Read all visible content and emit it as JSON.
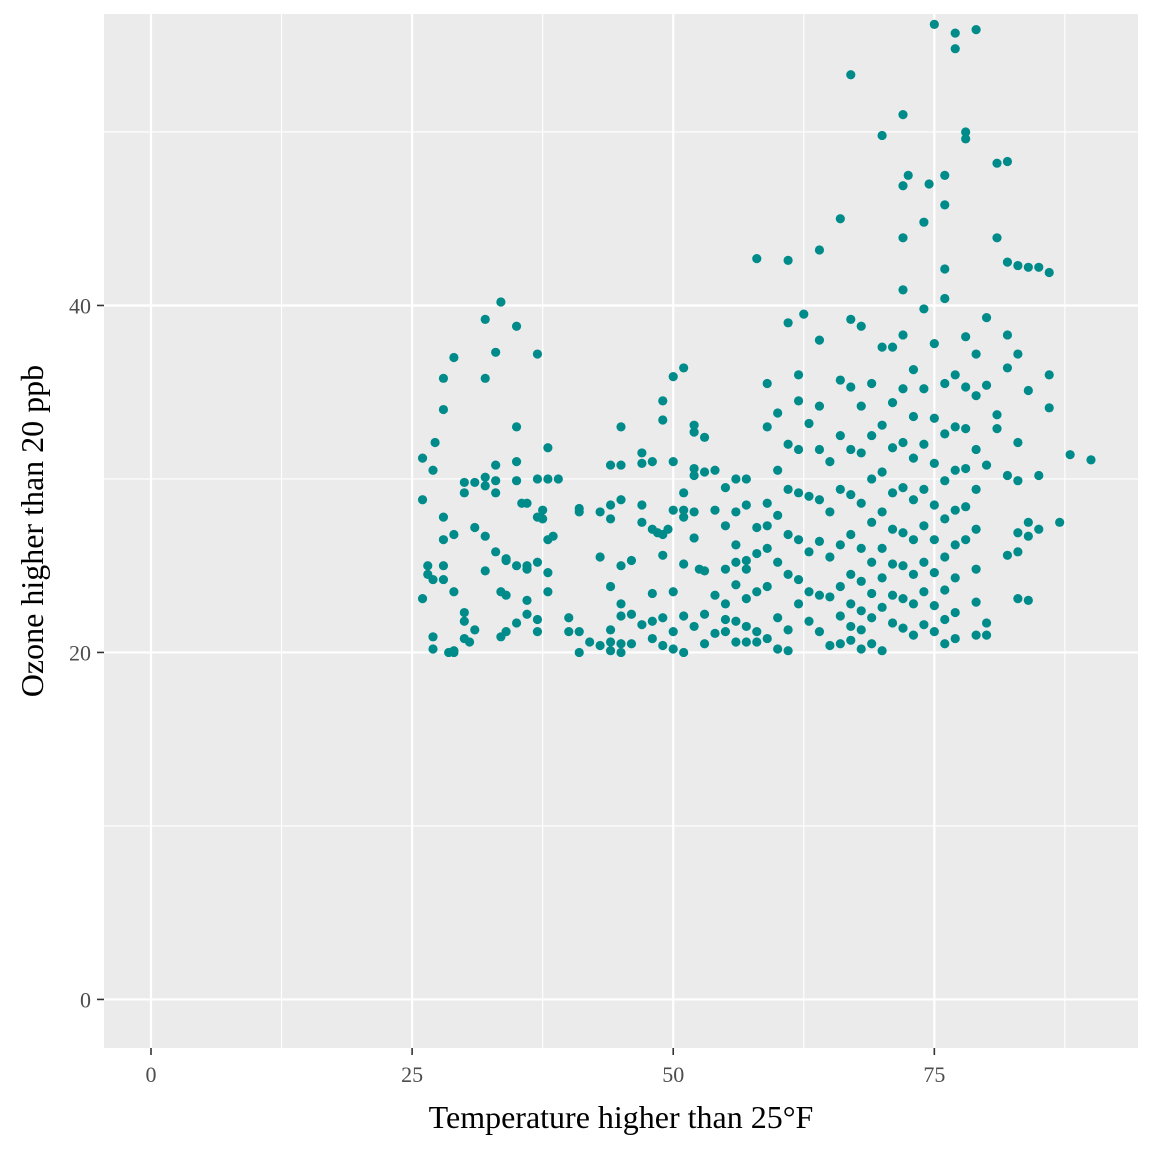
{
  "chart_data": {
    "type": "scatter",
    "title": "",
    "xlabel": "Temperature higher than 25°F",
    "ylabel": "Ozone higher than 20 ppb",
    "xlim": [
      -4.5,
      94.5
    ],
    "ylim": [
      -2.8,
      56.8
    ],
    "x_ticks": [
      0,
      25,
      50,
      75
    ],
    "x_tick_labels": [
      "0",
      "25",
      "50",
      "75"
    ],
    "y_ticks": [
      0,
      20,
      40
    ],
    "y_tick_labels": [
      "0",
      "20",
      "40"
    ],
    "grid": true,
    "legend": "none",
    "colors": {
      "point": "#008b8b",
      "panel": "#ebebeb",
      "grid": "#ffffff"
    },
    "points": [
      [
        26,
        31.2
      ],
      [
        26,
        28.8
      ],
      [
        26,
        23.1
      ],
      [
        26.5,
        25
      ],
      [
        26.5,
        24.5
      ],
      [
        27,
        24.2
      ],
      [
        27,
        30.5
      ],
      [
        27.2,
        32.1
      ],
      [
        27,
        20.9
      ],
      [
        27,
        20.2
      ],
      [
        28,
        35.8
      ],
      [
        28,
        34
      ],
      [
        28,
        27.8
      ],
      [
        28,
        26.5
      ],
      [
        28,
        25
      ],
      [
        28,
        24.2
      ],
      [
        28.5,
        20
      ],
      [
        29,
        20
      ],
      [
        29,
        26.8
      ],
      [
        29,
        23.5
      ],
      [
        29,
        20.1
      ],
      [
        29,
        37
      ],
      [
        30,
        29.8
      ],
      [
        30,
        29.2
      ],
      [
        30,
        22.3
      ],
      [
        30,
        21.8
      ],
      [
        30,
        20.8
      ],
      [
        30.5,
        20.6
      ],
      [
        31,
        29.8
      ],
      [
        31,
        27.2
      ],
      [
        31,
        21.3
      ],
      [
        32,
        39.2
      ],
      [
        32,
        35.8
      ],
      [
        32,
        30.1
      ],
      [
        32,
        29.6
      ],
      [
        32,
        26.7
      ],
      [
        32,
        24.7
      ],
      [
        33,
        37.3
      ],
      [
        33,
        30.8
      ],
      [
        33,
        29.9
      ],
      [
        33,
        29.2
      ],
      [
        33,
        25.8
      ],
      [
        33.5,
        40.2
      ],
      [
        33.5,
        23.5
      ],
      [
        33.5,
        20.9
      ],
      [
        34,
        25.4
      ],
      [
        34,
        23.3
      ],
      [
        34,
        21.2
      ],
      [
        34,
        25.3
      ],
      [
        35,
        38.8
      ],
      [
        35,
        33
      ],
      [
        35,
        31
      ],
      [
        35,
        29.9
      ],
      [
        35,
        25
      ],
      [
        35,
        21.7
      ],
      [
        35.5,
        28.6
      ],
      [
        36,
        28.6
      ],
      [
        36,
        25
      ],
      [
        36,
        24.8
      ],
      [
        36,
        23
      ],
      [
        36,
        22.2
      ],
      [
        37,
        37.2
      ],
      [
        37,
        30
      ],
      [
        37,
        27.8
      ],
      [
        37,
        25.2
      ],
      [
        37,
        21.9
      ],
      [
        37,
        21.2
      ],
      [
        37.5,
        28.2
      ],
      [
        37.5,
        27.7
      ],
      [
        38,
        31.8
      ],
      [
        38,
        30
      ],
      [
        38,
        26.5
      ],
      [
        38,
        24.6
      ],
      [
        38,
        23.5
      ],
      [
        38.5,
        26.7
      ],
      [
        39,
        30
      ],
      [
        40,
        22
      ],
      [
        40,
        21.2
      ],
      [
        41,
        28.3
      ],
      [
        41,
        28.1
      ],
      [
        41,
        21.2
      ],
      [
        41,
        20
      ],
      [
        42,
        20.6
      ],
      [
        43,
        28.1
      ],
      [
        43,
        25.5
      ],
      [
        43,
        20.4
      ],
      [
        44,
        30.8
      ],
      [
        44,
        28.5
      ],
      [
        44,
        27.7
      ],
      [
        44,
        23.8
      ],
      [
        44,
        21.3
      ],
      [
        44,
        20.6
      ],
      [
        44,
        20.1
      ],
      [
        45,
        33
      ],
      [
        45,
        30.8
      ],
      [
        45,
        28.8
      ],
      [
        45,
        25
      ],
      [
        45,
        22.8
      ],
      [
        45,
        22.1
      ],
      [
        45,
        20.5
      ],
      [
        45,
        20
      ],
      [
        46,
        25.3
      ],
      [
        46,
        22.2
      ],
      [
        46,
        20.5
      ],
      [
        47,
        31.5
      ],
      [
        47,
        30.9
      ],
      [
        47,
        28.5
      ],
      [
        47,
        27.5
      ],
      [
        47,
        21.6
      ],
      [
        48,
        31
      ],
      [
        48,
        27.1
      ],
      [
        48,
        23.4
      ],
      [
        48,
        21.8
      ],
      [
        48,
        20.8
      ],
      [
        48.5,
        26.9
      ],
      [
        49,
        34.5
      ],
      [
        49,
        33.4
      ],
      [
        49,
        26.8
      ],
      [
        49,
        25.6
      ],
      [
        49,
        22
      ],
      [
        49,
        20.4
      ],
      [
        49.5,
        27.1
      ],
      [
        50,
        35.9
      ],
      [
        50,
        31
      ],
      [
        50,
        28.2
      ],
      [
        50,
        23.5
      ],
      [
        50,
        21.2
      ],
      [
        50,
        20.2
      ],
      [
        51,
        36.4
      ],
      [
        51,
        29.2
      ],
      [
        51,
        28.2
      ],
      [
        51,
        27.8
      ],
      [
        51,
        22.1
      ],
      [
        51,
        20
      ],
      [
        51,
        25.1
      ],
      [
        52,
        33.1
      ],
      [
        52,
        32.7
      ],
      [
        52,
        30.6
      ],
      [
        52,
        30.2
      ],
      [
        52,
        28.1
      ],
      [
        52,
        26.6
      ],
      [
        52,
        21.5
      ],
      [
        52.5,
        24.8
      ],
      [
        53,
        32.4
      ],
      [
        53,
        30.4
      ],
      [
        53,
        24.7
      ],
      [
        53,
        22.2
      ],
      [
        53,
        20.5
      ],
      [
        54,
        30.5
      ],
      [
        54,
        28.2
      ],
      [
        54,
        23.3
      ],
      [
        54,
        21.1
      ],
      [
        55,
        29.5
      ],
      [
        55,
        27.3
      ],
      [
        55,
        24.8
      ],
      [
        55,
        22.8
      ],
      [
        55,
        21.9
      ],
      [
        55,
        21.2
      ],
      [
        56,
        30
      ],
      [
        56,
        28.1
      ],
      [
        56,
        26.2
      ],
      [
        56,
        25.2
      ],
      [
        56,
        23.9
      ],
      [
        56,
        21.8
      ],
      [
        56,
        20.6
      ],
      [
        57,
        30
      ],
      [
        57,
        28.5
      ],
      [
        57,
        25.3
      ],
      [
        57,
        24.8
      ],
      [
        57,
        23.1
      ],
      [
        57,
        21.5
      ],
      [
        57,
        20.6
      ],
      [
        58,
        42.7
      ],
      [
        58,
        27.2
      ],
      [
        58,
        25.7
      ],
      [
        58,
        23.5
      ],
      [
        58,
        21.2
      ],
      [
        58,
        20.6
      ],
      [
        59,
        35.5
      ],
      [
        59,
        33
      ],
      [
        59,
        28.6
      ],
      [
        59,
        27.3
      ],
      [
        59,
        26
      ],
      [
        59,
        23.8
      ],
      [
        59,
        20.8
      ],
      [
        60,
        33.8
      ],
      [
        60,
        30.5
      ],
      [
        60,
        27.9
      ],
      [
        60,
        25.2
      ],
      [
        60,
        22
      ],
      [
        60,
        20.2
      ],
      [
        61,
        42.6
      ],
      [
        61,
        39
      ],
      [
        61,
        32
      ],
      [
        61,
        29.4
      ],
      [
        61,
        26.8
      ],
      [
        61,
        24.5
      ],
      [
        61,
        21.3
      ],
      [
        61,
        20.1
      ],
      [
        62,
        36
      ],
      [
        62,
        34.5
      ],
      [
        62,
        31.7
      ],
      [
        62,
        29.2
      ],
      [
        62,
        26.5
      ],
      [
        62,
        24.2
      ],
      [
        62,
        22.8
      ],
      [
        62.5,
        39.5
      ],
      [
        63,
        33.2
      ],
      [
        63,
        29
      ],
      [
        63,
        25.8
      ],
      [
        63,
        23.5
      ],
      [
        63,
        21.8
      ],
      [
        64,
        43.2
      ],
      [
        64,
        38
      ],
      [
        64,
        34.2
      ],
      [
        64,
        31.7
      ],
      [
        64,
        28.8
      ],
      [
        64,
        26.4
      ],
      [
        64,
        23.3
      ],
      [
        64,
        21.2
      ],
      [
        65,
        31
      ],
      [
        65,
        28.1
      ],
      [
        65,
        25.5
      ],
      [
        65,
        23.2
      ],
      [
        65,
        20.4
      ],
      [
        66,
        45
      ],
      [
        66,
        35.7
      ],
      [
        66,
        32.5
      ],
      [
        66,
        29.4
      ],
      [
        66,
        26.2
      ],
      [
        66,
        23.8
      ],
      [
        66,
        22.1
      ],
      [
        66,
        20.5
      ],
      [
        67,
        53.3
      ],
      [
        67,
        39.2
      ],
      [
        67,
        35.3
      ],
      [
        67,
        31.7
      ],
      [
        67,
        29.1
      ],
      [
        67,
        26.8
      ],
      [
        67,
        24.5
      ],
      [
        67,
        22.8
      ],
      [
        67,
        21.5
      ],
      [
        67,
        20.7
      ],
      [
        68,
        38.8
      ],
      [
        68,
        34.2
      ],
      [
        68,
        31.5
      ],
      [
        68,
        28.6
      ],
      [
        68,
        26
      ],
      [
        68,
        24.1
      ],
      [
        68,
        22.4
      ],
      [
        68,
        21.3
      ],
      [
        68,
        20.2
      ],
      [
        69,
        35.5
      ],
      [
        69,
        32.5
      ],
      [
        69,
        30
      ],
      [
        69,
        27.5
      ],
      [
        69,
        25.2
      ],
      [
        69,
        23.4
      ],
      [
        69,
        22
      ],
      [
        69,
        20.5
      ],
      [
        70,
        49.8
      ],
      [
        70,
        37.6
      ],
      [
        70,
        33.1
      ],
      [
        70,
        30.4
      ],
      [
        70,
        28.1
      ],
      [
        70,
        26
      ],
      [
        70,
        24.3
      ],
      [
        70,
        22.6
      ],
      [
        70,
        20.1
      ],
      [
        71,
        37.6
      ],
      [
        71,
        34.4
      ],
      [
        71,
        31.8
      ],
      [
        71,
        29.2
      ],
      [
        71,
        27.1
      ],
      [
        71,
        25.1
      ],
      [
        71,
        23.3
      ],
      [
        71,
        21.7
      ],
      [
        72,
        51
      ],
      [
        72,
        46.9
      ],
      [
        72,
        43.9
      ],
      [
        72,
        40.9
      ],
      [
        72,
        38.3
      ],
      [
        72,
        35.2
      ],
      [
        72,
        32.1
      ],
      [
        72,
        29.5
      ],
      [
        72,
        26.9
      ],
      [
        72,
        25
      ],
      [
        72,
        23.1
      ],
      [
        72,
        21.4
      ],
      [
        72.5,
        47.5
      ],
      [
        73,
        36.3
      ],
      [
        73,
        33.6
      ],
      [
        73,
        31.2
      ],
      [
        73,
        28.8
      ],
      [
        73,
        26.5
      ],
      [
        73,
        24.5
      ],
      [
        73,
        22.8
      ],
      [
        73,
        21
      ],
      [
        74,
        44.8
      ],
      [
        74,
        39.8
      ],
      [
        74,
        35.2
      ],
      [
        74,
        32
      ],
      [
        74,
        29.4
      ],
      [
        74,
        27.3
      ],
      [
        74,
        25.2
      ],
      [
        74,
        23.5
      ],
      [
        74,
        21.6
      ],
      [
        74.5,
        47
      ],
      [
        75,
        56.2
      ],
      [
        75,
        37.8
      ],
      [
        75,
        33.5
      ],
      [
        75,
        30.9
      ],
      [
        75,
        28.5
      ],
      [
        75,
        26.5
      ],
      [
        75,
        24.6
      ],
      [
        75,
        22.7
      ],
      [
        75,
        21.2
      ],
      [
        76,
        47.5
      ],
      [
        76,
        45.8
      ],
      [
        76,
        42.1
      ],
      [
        76,
        40.4
      ],
      [
        76,
        35.5
      ],
      [
        76,
        32.6
      ],
      [
        76,
        29.9
      ],
      [
        76,
        27.7
      ],
      [
        76,
        25.5
      ],
      [
        76,
        23.6
      ],
      [
        76,
        21.9
      ],
      [
        76,
        20.5
      ],
      [
        77,
        55.7
      ],
      [
        77,
        54.8
      ],
      [
        77,
        36
      ],
      [
        77,
        33
      ],
      [
        77,
        30.5
      ],
      [
        77,
        28.2
      ],
      [
        77,
        26.2
      ],
      [
        77,
        24.3
      ],
      [
        77,
        22.3
      ],
      [
        77,
        20.8
      ],
      [
        78,
        50
      ],
      [
        78,
        49.6
      ],
      [
        78,
        38.2
      ],
      [
        78,
        35.3
      ],
      [
        78,
        32.9
      ],
      [
        78,
        30.6
      ],
      [
        78,
        28.4
      ],
      [
        78,
        26.5
      ],
      [
        79,
        55.9
      ],
      [
        79,
        37.2
      ],
      [
        79,
        34.8
      ],
      [
        79,
        31.7
      ],
      [
        79,
        29.4
      ],
      [
        79,
        27.1
      ],
      [
        79,
        24.8
      ],
      [
        79,
        22.9
      ],
      [
        79,
        21
      ],
      [
        80,
        39.3
      ],
      [
        80,
        35.4
      ],
      [
        80,
        30.8
      ],
      [
        80,
        21.7
      ],
      [
        80,
        21
      ],
      [
        81,
        48.2
      ],
      [
        81,
        43.9
      ],
      [
        81,
        33.7
      ],
      [
        81,
        32.9
      ],
      [
        82,
        48.3
      ],
      [
        82,
        42.5
      ],
      [
        82,
        38.3
      ],
      [
        82,
        36.4
      ],
      [
        82,
        30.2
      ],
      [
        82,
        25.6
      ],
      [
        83,
        42.3
      ],
      [
        83,
        37.2
      ],
      [
        83,
        32.1
      ],
      [
        83,
        29.9
      ],
      [
        83,
        26.9
      ],
      [
        83,
        25.8
      ],
      [
        83,
        23.1
      ],
      [
        84,
        42.2
      ],
      [
        84,
        35.1
      ],
      [
        84,
        27.5
      ],
      [
        84,
        26.7
      ],
      [
        84,
        23
      ],
      [
        85,
        42.2
      ],
      [
        85,
        30.2
      ],
      [
        85,
        27.1
      ],
      [
        86,
        36
      ],
      [
        86,
        34.1
      ],
      [
        86,
        41.9
      ],
      [
        87,
        27.5
      ],
      [
        88,
        31.4
      ],
      [
        90,
        31.1
      ]
    ]
  }
}
